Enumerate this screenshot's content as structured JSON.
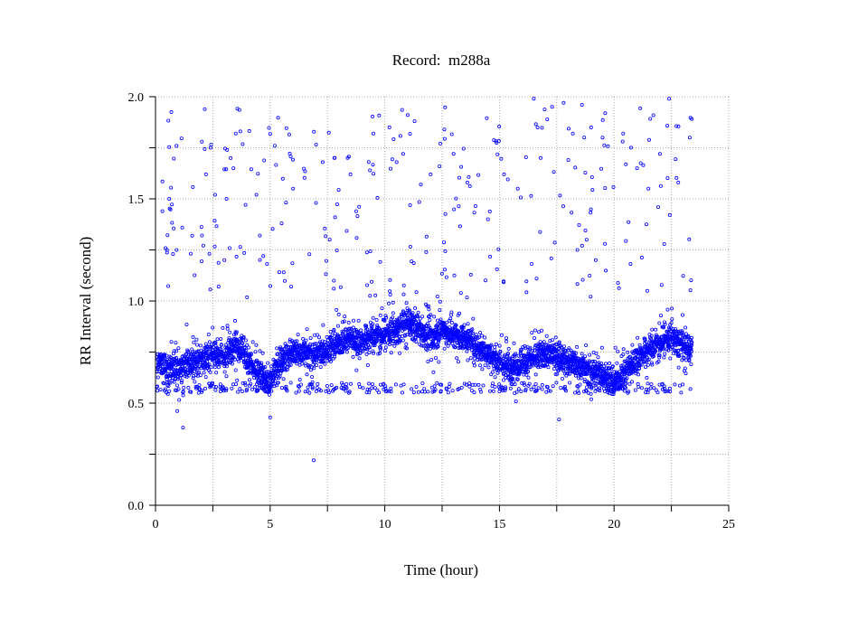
{
  "chart_data": {
    "type": "scatter",
    "title": "Record:  m288a",
    "xlabel": "Time (hour)",
    "ylabel": "RR Interval (second)",
    "xlim": [
      0,
      25
    ],
    "ylim": [
      0,
      2.0
    ],
    "x_ticks": [
      "0",
      "5",
      "10",
      "15",
      "20",
      "25"
    ],
    "y_ticks": [
      "0.0",
      "0.5",
      "1.0",
      "1.5",
      "2.0"
    ],
    "grid": true,
    "point_color": "#0000ff",
    "series": [
      {
        "values_note": "",
        "trend": [
          [
            0.0,
            0.7
          ],
          [
            0.5,
            0.68
          ],
          [
            1.0,
            0.66
          ],
          [
            1.5,
            0.7
          ],
          [
            2.0,
            0.72
          ],
          [
            2.5,
            0.74
          ],
          [
            3.0,
            0.73
          ],
          [
            3.5,
            0.8
          ],
          [
            3.8,
            0.76
          ],
          [
            4.0,
            0.72
          ],
          [
            4.3,
            0.66
          ],
          [
            4.7,
            0.62
          ],
          [
            5.0,
            0.6
          ],
          [
            5.3,
            0.68
          ],
          [
            5.8,
            0.74
          ],
          [
            6.5,
            0.75
          ],
          [
            7.0,
            0.74
          ],
          [
            7.5,
            0.76
          ],
          [
            8.0,
            0.8
          ],
          [
            8.5,
            0.82
          ],
          [
            9.0,
            0.8
          ],
          [
            9.5,
            0.83
          ],
          [
            10.0,
            0.84
          ],
          [
            10.5,
            0.85
          ],
          [
            11.0,
            0.9
          ],
          [
            11.5,
            0.86
          ],
          [
            12.0,
            0.82
          ],
          [
            12.5,
            0.86
          ],
          [
            13.0,
            0.83
          ],
          [
            13.5,
            0.82
          ],
          [
            14.0,
            0.78
          ],
          [
            14.5,
            0.74
          ],
          [
            15.0,
            0.7
          ],
          [
            15.5,
            0.68
          ],
          [
            16.0,
            0.7
          ],
          [
            16.5,
            0.72
          ],
          [
            17.0,
            0.74
          ],
          [
            17.5,
            0.73
          ],
          [
            18.0,
            0.7
          ],
          [
            18.5,
            0.68
          ],
          [
            19.0,
            0.66
          ],
          [
            19.5,
            0.64
          ],
          [
            20.0,
            0.6
          ],
          [
            20.5,
            0.66
          ],
          [
            21.0,
            0.72
          ],
          [
            21.5,
            0.76
          ],
          [
            22.0,
            0.8
          ],
          [
            22.5,
            0.82
          ],
          [
            23.0,
            0.78
          ],
          [
            23.4,
            0.76
          ]
        ],
        "outliers": [
          [
            0.3,
            1.44
          ],
          [
            0.5,
            1.25
          ],
          [
            0.6,
            1.5
          ],
          [
            1.2,
            0.38
          ],
          [
            1.6,
            1.32
          ],
          [
            2.2,
            1.62
          ],
          [
            2.4,
            1.75
          ],
          [
            2.6,
            1.52
          ],
          [
            3.1,
            1.5
          ],
          [
            3.4,
            1.65
          ],
          [
            3.5,
            1.82
          ],
          [
            3.7,
            1.83
          ],
          [
            4.4,
            1.52
          ],
          [
            4.7,
            1.22
          ],
          [
            5.0,
            0.43
          ],
          [
            5.5,
            1.38
          ],
          [
            6.0,
            1.55
          ],
          [
            6.9,
            0.22
          ],
          [
            7.0,
            1.48
          ],
          [
            7.8,
            1.7
          ],
          [
            8.5,
            1.62
          ],
          [
            9.3,
            1.68
          ],
          [
            9.5,
            1.82
          ],
          [
            10.2,
            1.85
          ],
          [
            10.8,
            1.72
          ],
          [
            11.0,
            1.91
          ],
          [
            11.3,
            1.88
          ],
          [
            12.0,
            1.62
          ],
          [
            12.6,
            1.84
          ],
          [
            13.0,
            1.72
          ],
          [
            13.6,
            1.58
          ],
          [
            14.5,
            1.4
          ],
          [
            15.2,
            1.62
          ],
          [
            15.8,
            1.55
          ],
          [
            16.5,
            1.99
          ],
          [
            16.8,
            1.7
          ],
          [
            17.3,
            1.95
          ],
          [
            17.8,
            1.97
          ],
          [
            18.2,
            1.82
          ],
          [
            18.6,
            1.96
          ],
          [
            19.0,
            1.85
          ],
          [
            19.5,
            1.8
          ],
          [
            20.4,
            1.82
          ],
          [
            21.0,
            1.65
          ],
          [
            21.5,
            1.55
          ],
          [
            22.0,
            1.72
          ],
          [
            22.4,
            1.99
          ],
          [
            22.8,
            1.58
          ],
          [
            23.3,
            1.8
          ],
          [
            17.6,
            0.42
          ],
          [
            18.8,
            1.3
          ],
          [
            19.2,
            1.2
          ],
          [
            18.4,
            1.25
          ],
          [
            19.6,
            1.28
          ]
        ]
      }
    ]
  }
}
